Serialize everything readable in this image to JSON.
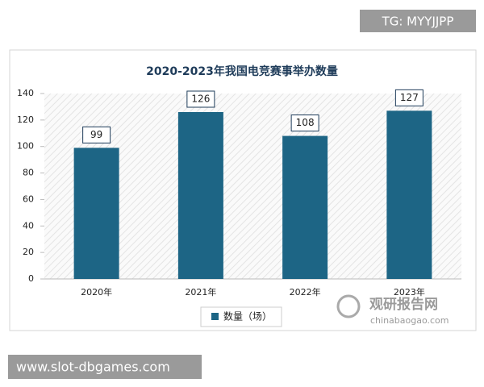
{
  "chart_data": {
    "type": "bar",
    "title": "2020-2023年我国电竞赛事举办数量",
    "categories": [
      "2020年",
      "2021年",
      "2022年",
      "2023年"
    ],
    "series": [
      {
        "name": "数量（场）",
        "color": "#1d6585",
        "values": [
          99,
          126,
          108,
          127
        ]
      }
    ],
    "ylim": [
      0,
      140
    ],
    "yticks": [
      0,
      20,
      40,
      60,
      80,
      100,
      120,
      140
    ],
    "grid": false,
    "legend": "bottom"
  },
  "watermarks": {
    "tg": "TG: MYYJJPP",
    "site": "www.slot-dbgames.com",
    "logo_cn": "观研报告网",
    "logo_en": "chinabaogao.com"
  }
}
